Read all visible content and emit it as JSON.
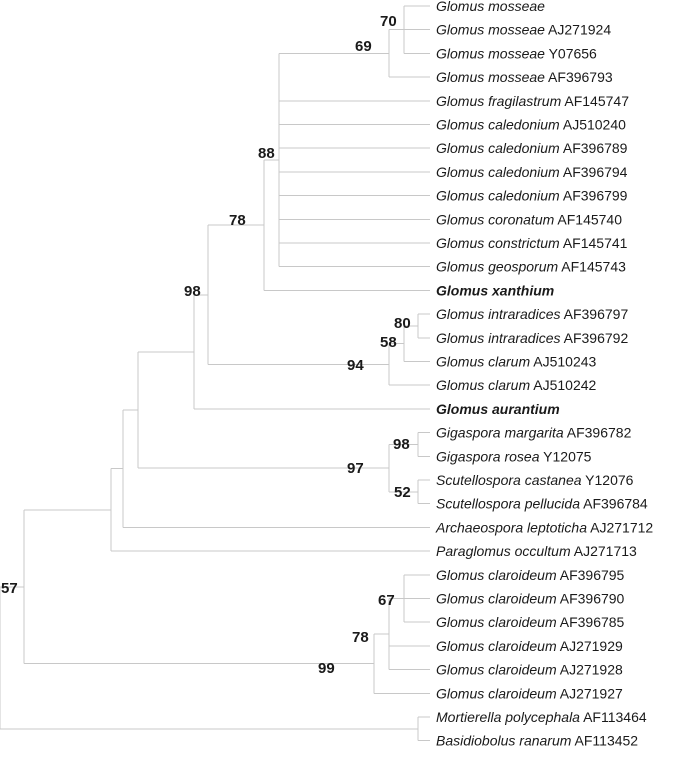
{
  "taxa": [
    {
      "name": "Glomus mosseae",
      "acc": "",
      "bold": false
    },
    {
      "name": "Glomus mosseae",
      "acc": "AJ271924",
      "bold": false
    },
    {
      "name": "Glomus mosseae",
      "acc": "Y07656",
      "bold": false
    },
    {
      "name": "Glomus mosseae",
      "acc": "AF396793",
      "bold": false
    },
    {
      "name": "Glomus fragilastrum",
      "acc": "AF145747",
      "bold": false
    },
    {
      "name": "Glomus caledonium",
      "acc": "AJ510240",
      "bold": false
    },
    {
      "name": "Glomus caledonium",
      "acc": "AF396789",
      "bold": false
    },
    {
      "name": "Glomus caledonium",
      "acc": "AF396794",
      "bold": false
    },
    {
      "name": "Glomus caledonium",
      "acc": "AF396799",
      "bold": false
    },
    {
      "name": "Glomus coronatum",
      "acc": "AF145740",
      "bold": false
    },
    {
      "name": "Glomus constrictum",
      "acc": "AF145741",
      "bold": false
    },
    {
      "name": "Glomus geosporum",
      "acc": "AF145743",
      "bold": false
    },
    {
      "name": "Glomus xanthium",
      "acc": "",
      "bold": true
    },
    {
      "name": "Glomus intraradices",
      "acc": "AF396797",
      "bold": false
    },
    {
      "name": "Glomus intraradices",
      "acc": "AF396792",
      "bold": false
    },
    {
      "name": "Glomus clarum",
      "acc": "AJ510243",
      "bold": false
    },
    {
      "name": "Glomus clarum",
      "acc": "AJ510242",
      "bold": false
    },
    {
      "name": "Glomus aurantium",
      "acc": "",
      "bold": true
    },
    {
      "name": "Gigaspora margarita",
      "acc": "AF396782",
      "bold": false
    },
    {
      "name": "Gigaspora rosea",
      "acc": "Y12075",
      "bold": false
    },
    {
      "name": "Scutellospora castanea",
      "acc": "Y12076",
      "bold": false
    },
    {
      "name": "Scutellospora pellucida",
      "acc": "AF396784",
      "bold": false
    },
    {
      "name": "Archaeospora leptoticha",
      "acc": "AJ271712",
      "bold": false
    },
    {
      "name": "Paraglomus occultum",
      "acc": "AJ271713",
      "bold": false
    },
    {
      "name": "Glomus claroideum",
      "acc": "AF396795",
      "bold": false
    },
    {
      "name": "Glomus claroideum",
      "acc": "AF396790",
      "bold": false
    },
    {
      "name": "Glomus claroideum",
      "acc": "AF396785",
      "bold": false
    },
    {
      "name": "Glomus claroideum",
      "acc": "AJ271929",
      "bold": false
    },
    {
      "name": "Glomus claroideum",
      "acc": "AJ271928",
      "bold": false
    },
    {
      "name": "Glomus claroideum",
      "acc": "AJ271927",
      "bold": false
    },
    {
      "name": "Mortierella polycephala",
      "acc": "AF113464",
      "bold": false
    },
    {
      "name": "Basidiobolus ranarum",
      "acc": "AF113452",
      "bold": false
    }
  ],
  "support_values": [
    "70",
    "69",
    "88",
    "78",
    "98",
    "80",
    "58",
    "94",
    "98",
    "97",
    "52",
    "78",
    "67",
    "99",
    "57"
  ]
}
